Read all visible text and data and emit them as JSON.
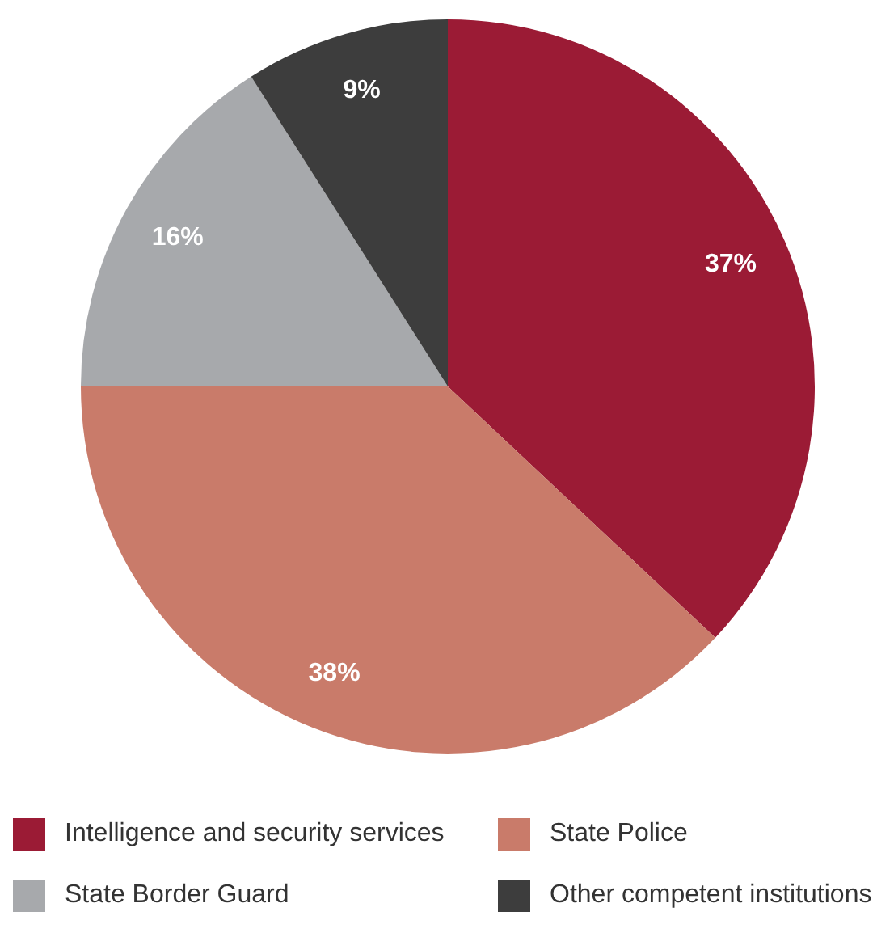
{
  "chart_data": {
    "type": "pie",
    "categories": [
      "Intelligence and security services",
      "State Police",
      "State Border Guard",
      "Other competent institutions"
    ],
    "values": [
      37,
      38,
      16,
      9
    ],
    "colors": [
      "#9b1b35",
      "#c97b6a",
      "#a7a9ac",
      "#3d3d3d"
    ],
    "value_labels": [
      "37%",
      "38%",
      "16%",
      "9%"
    ],
    "legend": "bottom"
  }
}
